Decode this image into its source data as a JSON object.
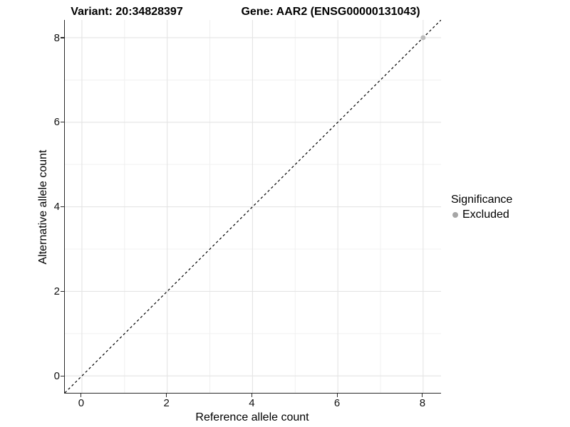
{
  "titles": {
    "variant": "Variant: 20:34828397",
    "gene": "Gene: AAR2 (ENSG00000131043)"
  },
  "chart_data": {
    "type": "scatter",
    "xlabel": "Reference allele count",
    "ylabel": "Alternative allele count",
    "xlim": [
      -0.4,
      8.42
    ],
    "ylim": [
      -0.4,
      8.42
    ],
    "xticks": [
      0,
      2,
      4,
      6,
      8
    ],
    "yticks": [
      0,
      2,
      4,
      6,
      8
    ],
    "minor_xticks": [
      1,
      3,
      5,
      7
    ],
    "minor_yticks": [
      1,
      3,
      5,
      7
    ],
    "grid": true,
    "identity_line": {
      "type": "dashed",
      "slope": 1,
      "intercept": 0,
      "color": "#000000"
    },
    "series": [
      {
        "name": "Excluded",
        "color": "#bcbcbc",
        "points": [
          {
            "x": 8,
            "y": 8
          }
        ]
      }
    ],
    "legend": {
      "position": "right",
      "title": "Significance",
      "items": [
        {
          "label": "Excluded",
          "color": "#a6a6a6"
        }
      ]
    },
    "style": {
      "grid_major": "#e4e4e4",
      "grid_minor": "#f0f0f0",
      "axis_color": "#2a2a2a",
      "background": "#ffffff"
    }
  }
}
